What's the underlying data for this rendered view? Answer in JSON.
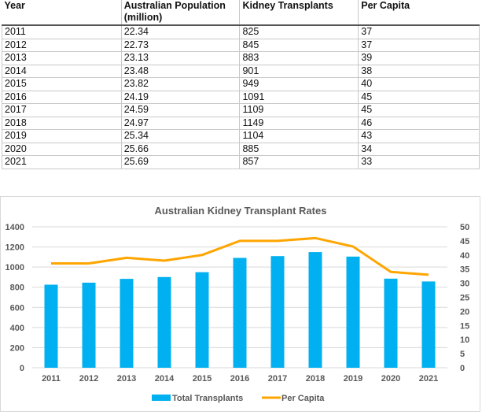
{
  "table": {
    "headers": [
      "Year",
      "Australian Population (million)",
      "Kidney Transplants",
      "Per Capita"
    ],
    "rows": [
      [
        "2011",
        "22.34",
        "825",
        "37"
      ],
      [
        "2012",
        "22.73",
        "845",
        "37"
      ],
      [
        "2013",
        "23.13",
        "883",
        "39"
      ],
      [
        "2014",
        "23.48",
        "901",
        "38"
      ],
      [
        "2015",
        "23.82",
        "949",
        "40"
      ],
      [
        "2016",
        "24.19",
        "1091",
        "45"
      ],
      [
        "2017",
        "24.59",
        "1109",
        "45"
      ],
      [
        "2018",
        "24.97",
        "1149",
        "46"
      ],
      [
        "2019",
        "25.34",
        "1104",
        "43"
      ],
      [
        "2020",
        "25.66",
        "885",
        "34"
      ],
      [
        "2021",
        "25.69",
        "857",
        "33"
      ]
    ]
  },
  "chart_data": {
    "type": "bar",
    "title": "Australian Kidney Transplant Rates",
    "categories": [
      "2011",
      "2012",
      "2013",
      "2014",
      "2015",
      "2016",
      "2017",
      "2018",
      "2019",
      "2020",
      "2021"
    ],
    "series": [
      {
        "name": "Total Transplants",
        "type": "bar",
        "axis": "left",
        "color": "#00b0f0",
        "values": [
          825,
          845,
          883,
          901,
          949,
          1091,
          1109,
          1149,
          1104,
          885,
          857
        ]
      },
      {
        "name": "Per Capita",
        "type": "line",
        "axis": "right",
        "color": "#ffa500",
        "values": [
          37,
          37,
          39,
          38,
          40,
          45,
          45,
          46,
          43,
          34,
          33
        ]
      }
    ],
    "y_left": {
      "min": 0,
      "max": 1400,
      "ticks": [
        0,
        200,
        400,
        600,
        800,
        1000,
        1200,
        1400
      ]
    },
    "y_right": {
      "min": 0,
      "max": 50,
      "ticks": [
        0,
        5,
        10,
        15,
        20,
        25,
        30,
        35,
        40,
        45,
        50
      ]
    },
    "xlabel": "",
    "ylabel": "",
    "grid": true,
    "legend": "bottom"
  }
}
